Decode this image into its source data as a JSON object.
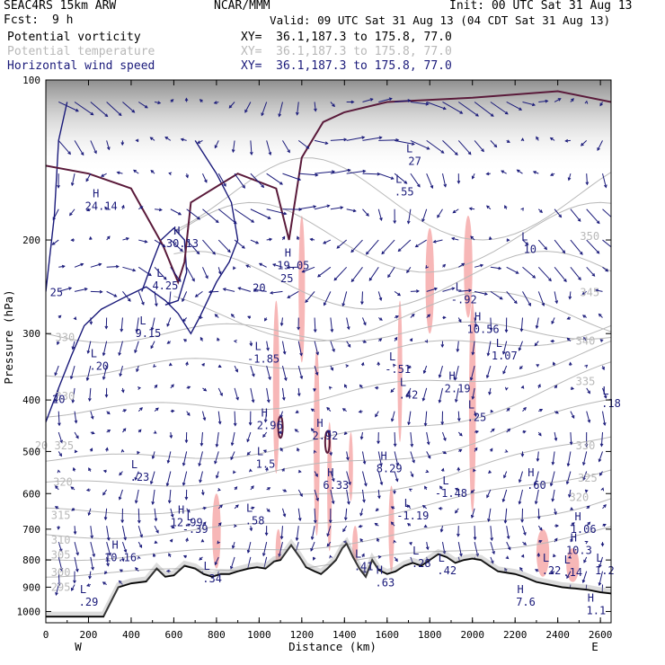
{
  "header": {
    "model": "SEAC4RS 15km ARW",
    "institution": "NCAR/MMM",
    "init": "Init: 00 UTC Sat 31 Aug 13",
    "fcst_label": "Fcst:",
    "fcst_value": "9 h",
    "valid": "Valid: 09 UTC Sat 31 Aug 13 (04 CDT Sat 31 Aug 13)"
  },
  "fields": [
    {
      "name": "Potential vorticity",
      "xy": "XY=  36.1,187.3 to 175.8, 77.0"
    },
    {
      "name": "Potential temperature",
      "xy": "XY=  36.1,187.3 to 175.8, 77.0"
    },
    {
      "name": "Horizontal wind speed",
      "xy": "XY=  36.1,187.3 to 175.8, 77.0"
    }
  ],
  "colors": {
    "pv": "#5a1a3a",
    "theta": "#b8b8b8",
    "wind": "#1a1a7a",
    "shading": "#f7b7b7",
    "terrain": "#000000",
    "jet_shade": "#9a9a9a"
  },
  "chart_data": {
    "type": "cross-section",
    "xlabel": "Distance (km)",
    "ylabel": "Pressure (hPa)",
    "x_range": [
      0,
      2650
    ],
    "y_range": [
      1050,
      100
    ],
    "x_ticks": [
      "0",
      "200",
      "400",
      "600",
      "800",
      "1000",
      "1200",
      "1400",
      "1600",
      "1800",
      "2000",
      "2200",
      "2400",
      "2600"
    ],
    "y_ticks": [
      "100",
      "200",
      "300",
      "400",
      "500",
      "600",
      "700",
      "800",
      "900",
      "1000"
    ],
    "left_end": "W",
    "right_end": "E",
    "theta_labels": [
      {
        "text": "350",
        "x": 2550,
        "p": 200
      },
      {
        "text": "345",
        "x": 2550,
        "p": 255
      },
      {
        "text": "340",
        "x": 2530,
        "p": 315
      },
      {
        "text": "335",
        "x": 2530,
        "p": 375
      },
      {
        "text": "330",
        "x": 2530,
        "p": 495
      },
      {
        "text": "325",
        "x": 2540,
        "p": 570
      },
      {
        "text": "320",
        "x": 2500,
        "p": 620
      },
      {
        "text": "330",
        "x": 90,
        "p": 310
      },
      {
        "text": "330",
        "x": 90,
        "p": 400
      },
      {
        "text": "20 325",
        "x": 40,
        "p": 495
      },
      {
        "text": "320",
        "x": 80,
        "p": 580
      },
      {
        "text": "315",
        "x": 70,
        "p": 670
      },
      {
        "text": "310",
        "x": 70,
        "p": 745
      },
      {
        "text": "305",
        "x": 70,
        "p": 795
      },
      {
        "text": "300",
        "x": 70,
        "p": 857
      },
      {
        "text": "295",
        "x": 70,
        "p": 915
      }
    ],
    "speed_labels": [
      {
        "text": "25",
        "x": 50,
        "p": 255
      },
      {
        "text": "20",
        "x": 60,
        "p": 405
      },
      {
        "text": "20",
        "x": 1000,
        "p": 250
      },
      {
        "text": "25",
        "x": 1130,
        "p": 240
      }
    ],
    "extrema": [
      {
        "kind": "H",
        "value": "24.14",
        "x": 260,
        "p": 170
      },
      {
        "kind": "H",
        "value": "30.13",
        "x": 640,
        "p": 200
      },
      {
        "kind": "L",
        "value": "4.25",
        "x": 560,
        "p": 240
      },
      {
        "kind": "L",
        "value": "9.15",
        "x": 480,
        "p": 295
      },
      {
        "kind": "H",
        "value": "19.05",
        "x": 1160,
        "p": 220
      },
      {
        "kind": "L",
        "value": "27",
        "x": 1730,
        "p": 140
      },
      {
        "kind": "L",
        "value": ".55",
        "x": 1680,
        "p": 160
      },
      {
        "kind": "L",
        "value": "10",
        "x": 2270,
        "p": 205
      },
      {
        "kind": "L",
        "value": "-.92",
        "x": 1960,
        "p": 255
      },
      {
        "kind": "H",
        "value": "10.56",
        "x": 2050,
        "p": 290
      },
      {
        "kind": "L",
        "value": "1.07",
        "x": 2150,
        "p": 325
      },
      {
        "kind": "L",
        "value": ".20",
        "x": 250,
        "p": 340
      },
      {
        "kind": "L",
        "value": "-1.85",
        "x": 1020,
        "p": 330
      },
      {
        "kind": "L",
        "value": "-.51",
        "x": 1650,
        "p": 345
      },
      {
        "kind": "L",
        "value": ".42",
        "x": 1700,
        "p": 385
      },
      {
        "kind": "H",
        "value": "2.19",
        "x": 1930,
        "p": 375
      },
      {
        "kind": "L",
        "value": ".25",
        "x": 2020,
        "p": 425
      },
      {
        "kind": "L",
        "value": ".18",
        "x": 2650,
        "p": 400
      },
      {
        "kind": "H",
        "value": "2.96",
        "x": 1050,
        "p": 440
      },
      {
        "kind": "H",
        "value": "2.92",
        "x": 1310,
        "p": 460
      },
      {
        "kind": "L",
        "value": "1.5",
        "x": 1030,
        "p": 520
      },
      {
        "kind": "L",
        "value": ".23",
        "x": 440,
        "p": 550
      },
      {
        "kind": "H",
        "value": "8.29",
        "x": 1610,
        "p": 530
      },
      {
        "kind": "H",
        "value": "6.33",
        "x": 1360,
        "p": 570
      },
      {
        "kind": "L",
        "value": "-1.48",
        "x": 1900,
        "p": 590
      },
      {
        "kind": "H",
        "value": ".60",
        "x": 2300,
        "p": 570
      },
      {
        "kind": "H",
        "value": "12.99",
        "x": 660,
        "p": 670
      },
      {
        "kind": "L",
        "value": "-.39",
        "x": 700,
        "p": 690
      },
      {
        "kind": "L",
        "value": ".58",
        "x": 980,
        "p": 665
      },
      {
        "kind": "L",
        "value": "-1.19",
        "x": 1720,
        "p": 650
      },
      {
        "kind": "H",
        "value": "1.06",
        "x": 2520,
        "p": 690
      },
      {
        "kind": "H",
        "value": "10.3",
        "x": 2500,
        "p": 755
      },
      {
        "kind": "H",
        "value": "10.16",
        "x": 350,
        "p": 780
      },
      {
        "kind": "L",
        "value": ".41",
        "x": 1490,
        "p": 810
      },
      {
        "kind": "L",
        "value": ".28",
        "x": 1760,
        "p": 800
      },
      {
        "kind": "L",
        "value": ".42",
        "x": 1880,
        "p": 825
      },
      {
        "kind": "L",
        "value": ".22",
        "x": 2370,
        "p": 825
      },
      {
        "kind": "L",
        "value": ".14",
        "x": 2470,
        "p": 832
      },
      {
        "kind": "L",
        "value": "1.2",
        "x": 2620,
        "p": 825
      },
      {
        "kind": "L",
        "value": ".34",
        "x": 780,
        "p": 855
      },
      {
        "kind": "H",
        "value": ".63",
        "x": 1590,
        "p": 870
      },
      {
        "kind": "L",
        "value": ".29",
        "x": 200,
        "p": 945
      },
      {
        "kind": "H",
        "value": "7.6",
        "x": 2250,
        "p": 945
      },
      {
        "kind": "H",
        "value": "1.1",
        "x": 2580,
        "p": 980
      }
    ],
    "pv_shading": [
      {
        "x": 1080,
        "p1": 260,
        "p2": 550,
        "w": 30
      },
      {
        "x": 1200,
        "p1": 180,
        "p2": 340,
        "w": 30
      },
      {
        "x": 1270,
        "p1": 320,
        "p2": 720,
        "w": 28
      },
      {
        "x": 1330,
        "p1": 440,
        "p2": 770,
        "w": 22
      },
      {
        "x": 1450,
        "p1": 690,
        "p2": 820,
        "w": 26
      },
      {
        "x": 1660,
        "p1": 260,
        "p2": 480,
        "w": 22
      },
      {
        "x": 1800,
        "p1": 190,
        "p2": 300,
        "w": 40
      },
      {
        "x": 2000,
        "p1": 260,
        "p2": 650,
        "w": 32
      },
      {
        "x": 1980,
        "p1": 180,
        "p2": 280,
        "w": 40
      },
      {
        "x": 1620,
        "p1": 580,
        "p2": 840,
        "w": 26
      },
      {
        "x": 800,
        "p1": 600,
        "p2": 830,
        "w": 40
      },
      {
        "x": 2330,
        "p1": 700,
        "p2": 860,
        "w": 60
      },
      {
        "x": 2470,
        "p1": 760,
        "p2": 880,
        "w": 60
      },
      {
        "x": 1090,
        "p1": 700,
        "p2": 860,
        "w": 26
      },
      {
        "x": 1430,
        "p1": 460,
        "p2": 620,
        "w": 20
      }
    ],
    "terrain": [
      [
        0,
        1022
      ],
      [
        270,
        1022
      ],
      [
        340,
        900
      ],
      [
        400,
        885
      ],
      [
        470,
        878
      ],
      [
        520,
        830
      ],
      [
        560,
        860
      ],
      [
        600,
        855
      ],
      [
        650,
        820
      ],
      [
        700,
        830
      ],
      [
        740,
        850
      ],
      [
        780,
        860
      ],
      [
        820,
        850
      ],
      [
        860,
        850
      ],
      [
        900,
        840
      ],
      [
        950,
        830
      ],
      [
        990,
        825
      ],
      [
        1030,
        830
      ],
      [
        1070,
        805
      ],
      [
        1100,
        800
      ],
      [
        1150,
        750
      ],
      [
        1190,
        790
      ],
      [
        1220,
        825
      ],
      [
        1260,
        840
      ],
      [
        1290,
        850
      ],
      [
        1320,
        830
      ],
      [
        1360,
        800
      ],
      [
        1390,
        760
      ],
      [
        1410,
        745
      ],
      [
        1440,
        790
      ],
      [
        1470,
        830
      ],
      [
        1500,
        860
      ],
      [
        1530,
        800
      ],
      [
        1560,
        835
      ],
      [
        1600,
        850
      ],
      [
        1640,
        840
      ],
      [
        1680,
        820
      ],
      [
        1720,
        810
      ],
      [
        1760,
        820
      ],
      [
        1800,
        800
      ],
      [
        1840,
        780
      ],
      [
        1880,
        790
      ],
      [
        1920,
        810
      ],
      [
        1960,
        800
      ],
      [
        2000,
        795
      ],
      [
        2040,
        800
      ],
      [
        2080,
        820
      ],
      [
        2120,
        840
      ],
      [
        2160,
        845
      ],
      [
        2200,
        850
      ],
      [
        2240,
        860
      ],
      [
        2300,
        880
      ],
      [
        2360,
        890
      ],
      [
        2420,
        900
      ],
      [
        2480,
        905
      ],
      [
        2540,
        910
      ],
      [
        2600,
        920
      ],
      [
        2650,
        925
      ]
    ]
  }
}
